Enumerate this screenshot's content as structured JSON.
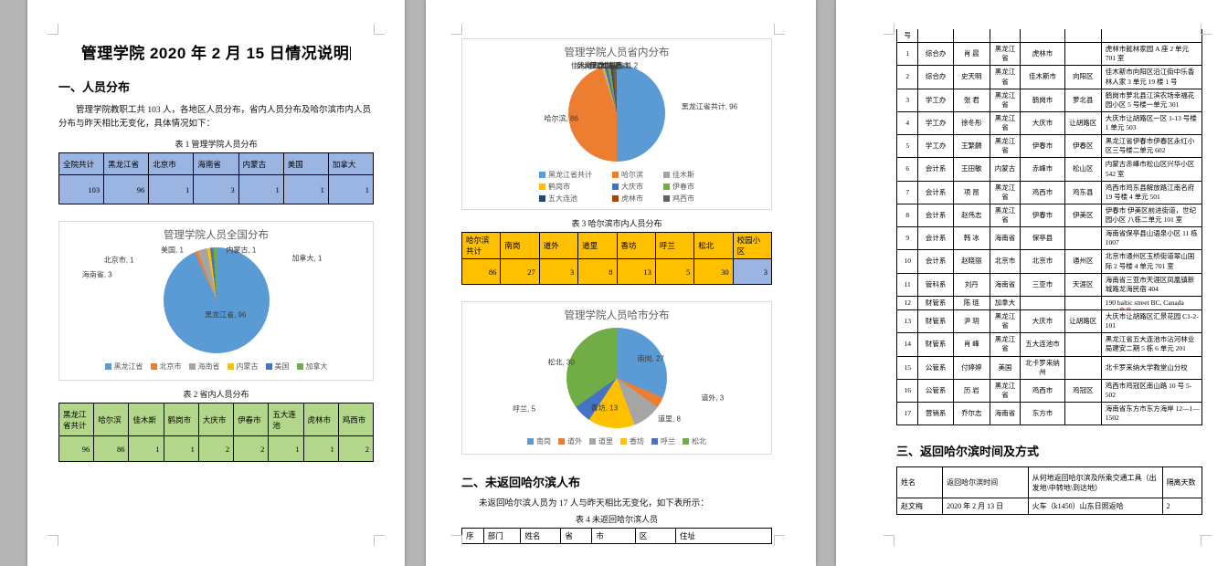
{
  "document": {
    "title": "管理学院 2020 年 2 月 15 日情况说明",
    "section1": "一、人员分布",
    "section2": "二、未返回哈尔滨人布",
    "section3": "三、返回哈尔滨时间及方式",
    "p1_intro": "管理学院教职工共 103 人，各地区人员分布，省内人员分布及哈尔滨市内人员分布与昨天相比无变化，具体情况如下：",
    "p2_intro": "未返回哈尔滨人员为 17 人与昨天相比无变化，如下表所示："
  },
  "table1": {
    "caption": "表 1 管理学院人员分布",
    "headers": [
      "全院共计",
      "黑龙江省",
      "北京市",
      "海南省",
      "内蒙古",
      "美国",
      "加拿大"
    ],
    "values": [
      "103",
      "96",
      "1",
      "3",
      "1",
      "1",
      "1"
    ]
  },
  "table2": {
    "caption": "表 2 省内人员分布",
    "headers": [
      "黑龙江省共计",
      "哈尔滨",
      "佳木斯",
      "鹤岗市",
      "大庆市",
      "伊春市",
      "五大连池",
      "虎林市",
      "鸡西市"
    ],
    "values": [
      "96",
      "86",
      "1",
      "1",
      "2",
      "2",
      "1",
      "1",
      "2"
    ]
  },
  "table3": {
    "caption": "表 3 哈尔滨市内人员分布",
    "headers": [
      "哈尔滨共计",
      "南岗",
      "道外",
      "道里",
      "香坊",
      "呼兰",
      "松北",
      "校园小区"
    ],
    "values": [
      "86",
      "27",
      "3",
      "8",
      "13",
      "5",
      "30",
      "3"
    ]
  },
  "table4": {
    "caption": "表 4 未返回哈尔滨人员",
    "headers": [
      "序",
      "部门",
      "姓名",
      "省",
      "市",
      "区",
      "住址"
    ],
    "cont_headers": [
      "号",
      "",
      "",
      "",
      "",
      "",
      ""
    ]
  },
  "roster_rows": [
    [
      "1",
      "综合办",
      "肖 晨",
      "黑龙江省",
      "虎林市",
      "",
      "虎林市懿林家园 A 座 2 单元 701 室"
    ],
    [
      "2",
      "综合办",
      "史天明",
      "黑龙江省",
      "佳木斯市",
      "向阳区",
      "佳木斯市向阳区沿江街中乐香林人家 3 单元 19 楼 1 号"
    ],
    [
      "3",
      "学工办",
      "张 君",
      "黑龙江省",
      "鹤岗市",
      "萝北县",
      "鹤岗市萝北县江滨农场幸福花园小区 5 号楼一单元 301"
    ],
    [
      "4",
      "学工办",
      "徐冬彤",
      "黑龙江省",
      "大庆市",
      "让胡路区",
      "大庆市让胡路区一区 1-13 号楼 1 单元 503"
    ],
    [
      "5",
      "学工办",
      "王繁麟",
      "黑龙江省",
      "伊春市",
      "伊春区",
      "黑龙江省伊春市伊春区永红小区三号楼二单元 602"
    ],
    [
      "6",
      "会计系",
      "王田敏",
      "内蒙古",
      "赤峰市",
      "松山区",
      "内蒙古赤峰市松山区兴华小区 542 室"
    ],
    [
      "7",
      "会计系",
      "项 昂",
      "黑龙江省",
      "鸡西市",
      "鸡东县",
      "鸡西市鸡东县解放路江南名府 19 号楼 4 单元 501"
    ],
    [
      "8",
      "会计系",
      "赵伟志",
      "黑龙江省",
      "伊春市",
      "伊美区",
      "伊春市 伊美区前进街道，世纪园小区 八栋二单元 101 室"
    ],
    [
      "9",
      "会计系",
      "韩 冰",
      "海南省",
      "保亭县",
      "",
      "海南省保亭县山语泉小区 11 栋 1007"
    ],
    [
      "10",
      "会计系",
      "赵晓丽",
      "北京市",
      "北京市",
      "通州区",
      "北京市通州区玉桥街道翠山国际 2 号楼 4 单元 701 室"
    ],
    [
      "11",
      "管科系",
      "刘丹",
      "海南省",
      "三亚市",
      "天涯区",
      "海南省三亚市天涯区凤凰镇新城路龙海民宿 404"
    ],
    [
      "12",
      "财管系",
      "陈 琏",
      "加拿大",
      "",
      "",
      "190 baltic street BC, Canada"
    ],
    [
      "13",
      "财管系",
      "尹 玥",
      "黑龙江省",
      "大庆市",
      "让胡路区",
      "大庆市让胡路区汇景花园 C1-2-101"
    ],
    [
      "14",
      "财管系",
      "肖 峰",
      "黑龙江省",
      "五大连池市",
      "",
      "黑龙江省五大连池市沾河林业局建安二期 5 栋 6 单元 201"
    ],
    [
      "15",
      "公管系",
      "付婷婷",
      "美国",
      "北卡罗来纳州",
      "",
      "北卡罗来纳大学教堂山分校"
    ],
    [
      "16",
      "公管系",
      "历 岩",
      "黑龙江省",
      "鸡西市",
      "鸡冠区",
      "鸡西市鸡冠区南山路 10 号 5-502"
    ],
    [
      "17",
      "营销系",
      "乔尔志",
      "海南省",
      "东方市",
      "",
      "海南省东方市东方海岸 12—1—1502"
    ]
  ],
  "return_table": {
    "headers": [
      "姓名",
      "返回哈尔滨时间",
      "从何地返回哈尔滨及所乘交通工具（出发地\\中转地\\到达地）",
      "隔离天数"
    ],
    "rows": [
      [
        "赵文梅",
        "2020 年 2 月 13 日",
        "火车（k1450）山东日照返哈",
        "2"
      ]
    ]
  },
  "chart_data": [
    {
      "type": "pie",
      "title": "管理学院人员全国分布",
      "legend_position": "bottom",
      "legend_cols": 0,
      "slices": [
        {
          "name": "黑龙江省",
          "value": 96,
          "color": "#5b9bd5",
          "label_pos": [
            53,
            62
          ]
        },
        {
          "name": "北京市",
          "value": 1,
          "color": "#ed7d31",
          "label_pos": [
            19,
            15
          ]
        },
        {
          "name": "海南省",
          "value": 3,
          "color": "#a5a5a5",
          "label_pos": [
            12,
            28
          ]
        },
        {
          "name": "内蒙古",
          "value": 1,
          "color": "#ffc000",
          "label_pos": [
            58,
            7
          ]
        },
        {
          "name": "美国",
          "value": 1,
          "color": "#4472c4",
          "label_pos": [
            36,
            7
          ]
        },
        {
          "name": "加拿大",
          "value": 1,
          "color": "#70ad47",
          "label_pos": [
            79,
            14
          ]
        }
      ]
    },
    {
      "type": "pie",
      "title": "管理学院人员省内分布",
      "legend_position": "bottom",
      "legend_cols": 3,
      "slices": [
        {
          "name": "黑龙江省共计",
          "value": 96,
          "color": "#5b9bd5",
          "label_pos": [
            80,
            44
          ],
          "wrap": true
        },
        {
          "name": "哈尔滨",
          "value": 86,
          "color": "#ed7d31",
          "label_pos": [
            32,
            55
          ]
        },
        {
          "name": "佳木斯",
          "value": 1,
          "color": "#a5a5a5",
          "label_pos": [
            40,
            6
          ]
        },
        {
          "name": "鹤岗市",
          "value": 1,
          "color": "#ffc000",
          "label_pos": [
            42,
            6
          ]
        },
        {
          "name": "大庆市",
          "value": 2,
          "color": "#4472c4",
          "label_pos": [
            44,
            6
          ]
        },
        {
          "name": "伊春市",
          "value": 2,
          "color": "#70ad47",
          "label_pos": [
            46,
            6
          ]
        },
        {
          "name": "五大连池",
          "value": 1,
          "color": "#264478",
          "label_pos": [
            48,
            6
          ]
        },
        {
          "name": "虎林市",
          "value": 1,
          "color": "#9e480e",
          "label_pos": [
            50,
            6
          ]
        },
        {
          "name": "鸡西市",
          "value": 2,
          "color": "#636363",
          "label_pos": [
            52,
            6
          ]
        }
      ]
    },
    {
      "type": "pie",
      "title": "管理学院人员哈市分布",
      "legend_position": "bottom",
      "legend_cols": 0,
      "slices": [
        {
          "name": "南岗",
          "value": 27,
          "color": "#5b9bd5",
          "label_pos": [
            61,
            33
          ]
        },
        {
          "name": "道外",
          "value": 3,
          "color": "#ed7d31",
          "label_pos": [
            81,
            68
          ]
        },
        {
          "name": "道里",
          "value": 8,
          "color": "#a5a5a5",
          "label_pos": [
            67,
            87
          ]
        },
        {
          "name": "香坊",
          "value": 13,
          "color": "#ffc000",
          "label_pos": [
            46,
            77
          ]
        },
        {
          "name": "呼兰",
          "value": 5,
          "color": "#4472c4",
          "label_pos": [
            20,
            78
          ]
        },
        {
          "name": "松北",
          "value": 30,
          "color": "#70ad47",
          "label_pos": [
            32,
            36
          ]
        }
      ]
    }
  ],
  "colors": {
    "table_blue": "#9ab5e1",
    "table_green": "#b2d68a",
    "table_orange": "#ffc000",
    "page_background": "#b5b5b5"
  }
}
